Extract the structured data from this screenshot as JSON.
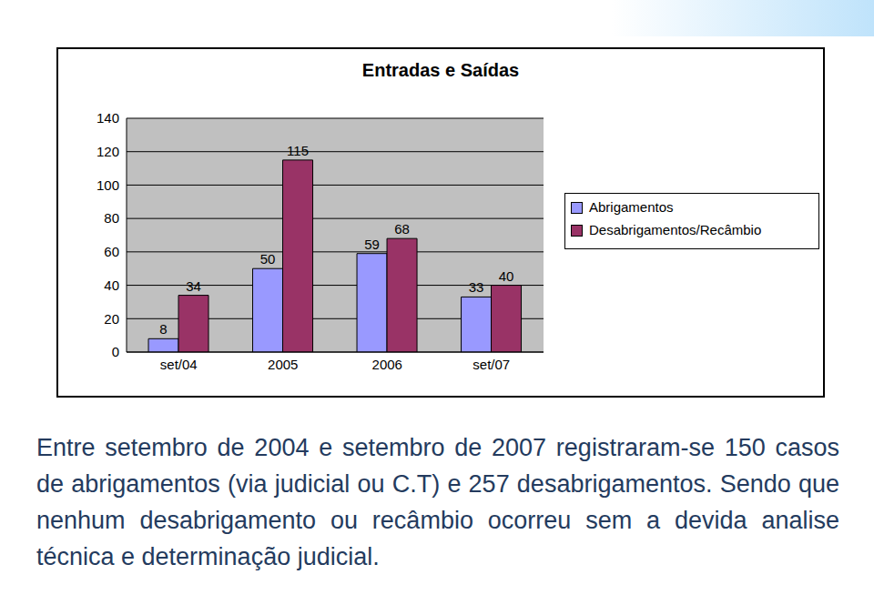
{
  "chart_data": {
    "type": "bar",
    "title": "Entradas e Saídas",
    "categories": [
      "set/04",
      "2005",
      "2006",
      "set/07"
    ],
    "series": [
      {
        "name": "Abrigamentos",
        "color": "#9999ff",
        "values": [
          8,
          50,
          59,
          33
        ]
      },
      {
        "name": "Desabrigamentos/Recâmbio",
        "color": "#993366",
        "values": [
          34,
          115,
          68,
          40
        ]
      }
    ],
    "ylim": [
      0,
      140
    ],
    "yticks": [
      0,
      20,
      40,
      60,
      80,
      100,
      120,
      140
    ],
    "grid": true,
    "legend": "right",
    "data_labels": true
  },
  "caption": "Entre setembro de 2004 e setembro de 2007 registraram-se 150 casos de abrigamentos (via judicial ou C.T) e 257 desabrigamentos. Sendo que nenhum desabrigamento ou recâmbio ocorreu sem a devida analise técnica e determinação judicial."
}
